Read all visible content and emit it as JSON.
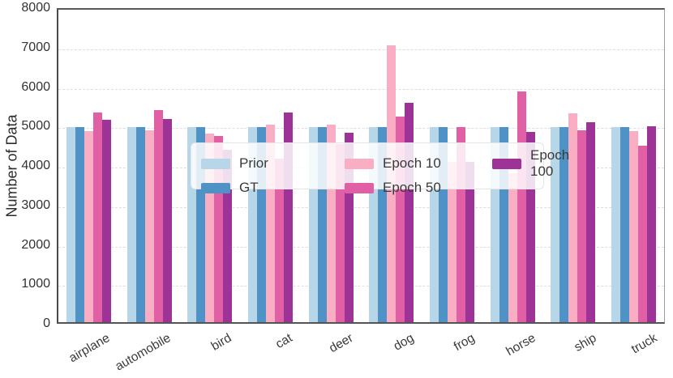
{
  "figure": {
    "ylabel": "Number of Data"
  },
  "chart_data": {
    "type": "bar",
    "title": "",
    "xlabel": "",
    "ylabel": "Number of Data",
    "ylim": [
      0,
      8000
    ],
    "yticks": [
      0,
      1000,
      2000,
      3000,
      4000,
      5000,
      6000,
      7000,
      8000
    ],
    "grid": "horizontal dashed gridlines",
    "legend_position": "inside center, 3 columns, semi-transparent box",
    "categories": [
      "airplane",
      "automobile",
      "bird",
      "cat",
      "deer",
      "dog",
      "frog",
      "horse",
      "ship",
      "truck"
    ],
    "series": [
      {
        "name": "Prior",
        "color": "#b7d7e9",
        "values": [
          5000,
          5000,
          5000,
          5000,
          5000,
          5000,
          5000,
          5000,
          5000,
          5000
        ]
      },
      {
        "name": "GT",
        "color": "#4f92c5",
        "values": [
          5000,
          5000,
          5000,
          5000,
          5000,
          5000,
          5000,
          5000,
          5000,
          5000
        ]
      },
      {
        "name": "Epoch 10",
        "color": "#f9aec3",
        "values": [
          4900,
          4910,
          4830,
          5050,
          5050,
          7080,
          4110,
          3820,
          5340,
          4900
        ]
      },
      {
        "name": "Epoch 50",
        "color": "#e160a5",
        "values": [
          5360,
          5430,
          4760,
          4190,
          4550,
          5270,
          5000,
          5900,
          4910,
          4520
        ]
      },
      {
        "name": "Epoch 100",
        "color": "#9e3397",
        "values": [
          5190,
          5200,
          4420,
          5370,
          4860,
          5620,
          4100,
          4880,
          5120,
          5020
        ]
      }
    ]
  }
}
